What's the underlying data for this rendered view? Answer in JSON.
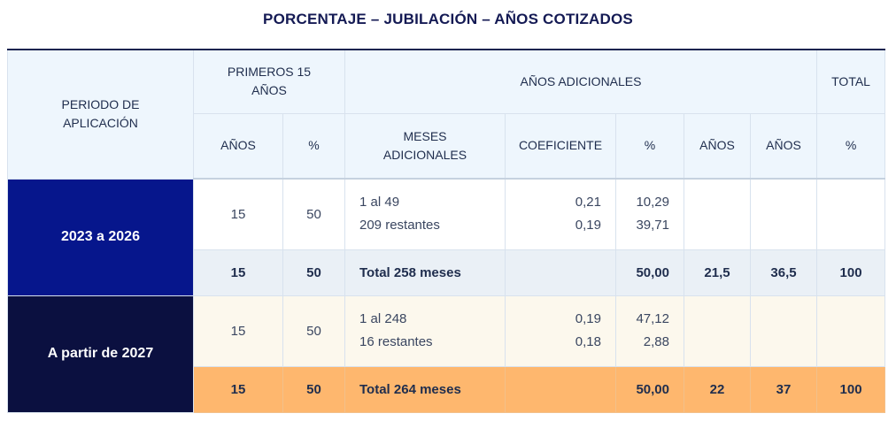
{
  "title": "PORCENTAJE – JUBILACIÓN – AÑOS COTIZADOS",
  "header": {
    "periodo": "PERIODO DE APLICACIÓN",
    "primeros": "PRIMEROS 15 AÑOS",
    "adicionales": "AÑOS ADICIONALES",
    "total": "TOTAL",
    "sub": {
      "anos1": "AÑOS",
      "pct1": "%",
      "meses": "MESES ADICIONALES",
      "coef": "COEFICIENTE",
      "pct2": "%",
      "anos2": "AÑOS",
      "anos3": "AÑOS",
      "pct3": "%"
    }
  },
  "colors": {
    "period1_bg": "#06168c",
    "period2_bg": "#0b1040",
    "total1_bg": "#eaf0f6",
    "total2_bg": "#feb76e",
    "header_bg": "#eef6fd"
  },
  "rows": [
    {
      "period": "2023 a 2026",
      "detail": {
        "anos": "15",
        "pct": "50",
        "meses": [
          "1 al 49",
          "209 restantes"
        ],
        "coef": [
          "0,21",
          "0,19"
        ],
        "pct_add": [
          "10,29",
          "39,71"
        ]
      },
      "total": {
        "anos": "15",
        "pct": "50",
        "meses": "Total 258 meses",
        "coef": "",
        "pct_add": "50,00",
        "anos_add": "21,5",
        "anos_total": "36,5",
        "pct_total": "100"
      }
    },
    {
      "period": "A partir de 2027",
      "detail": {
        "anos": "15",
        "pct": "50",
        "meses": [
          "1 al 248",
          "16 restantes"
        ],
        "coef": [
          "0,19",
          "0,18"
        ],
        "pct_add": [
          "47,12",
          "2,88"
        ]
      },
      "total": {
        "anos": "15",
        "pct": "50",
        "meses": "Total 264 meses",
        "coef": "",
        "pct_add": "50,00",
        "anos_add": "22",
        "anos_total": "37",
        "pct_total": "100"
      }
    }
  ]
}
